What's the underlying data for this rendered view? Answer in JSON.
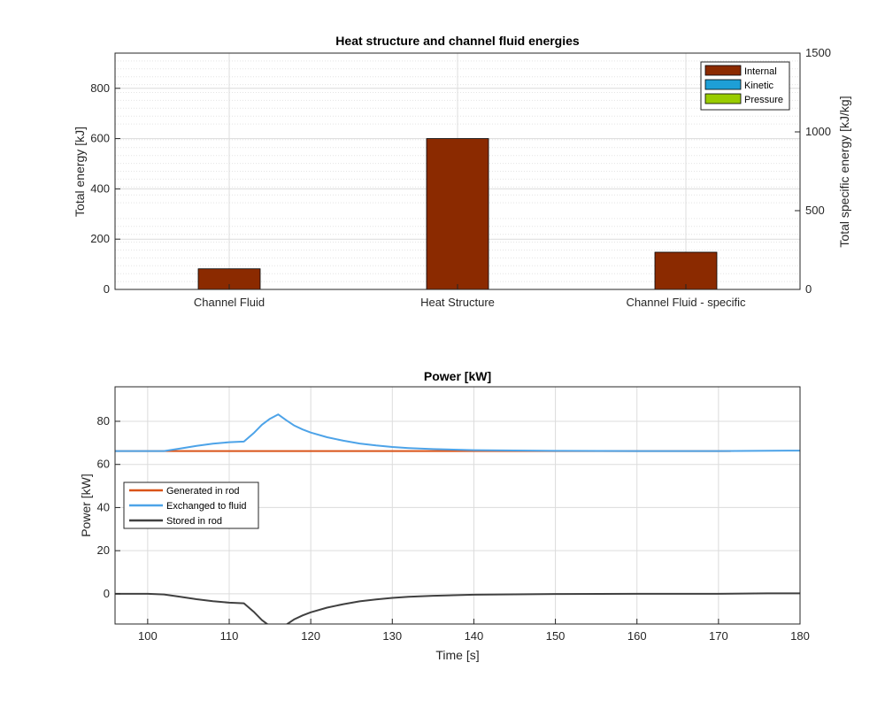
{
  "chart_data": [
    {
      "type": "bar",
      "title": "Heat structure and channel fluid energies",
      "ylabel": "Total energy [kJ]",
      "ylabel_right": "Total specific energy [kJ/kg]",
      "ylim": [
        0,
        940
      ],
      "ylim_right": [
        0,
        1500
      ],
      "yticks": [
        0,
        200,
        400,
        600,
        800
      ],
      "yticks_right": [
        0,
        500,
        1000,
        1500
      ],
      "categories": [
        "Channel Fluid",
        "Heat Structure",
        "Channel Fluid - specific"
      ],
      "series": [
        {
          "name": "Internal",
          "values": [
            82,
            600,
            148
          ],
          "color": "#8b2a00"
        },
        {
          "name": "Kinetic",
          "values": [
            0,
            0,
            0
          ],
          "color": "#1e9fd6"
        },
        {
          "name": "Pressure",
          "values": [
            0,
            0,
            0
          ],
          "color": "#99cc00"
        }
      ],
      "grid": true,
      "legend": "top-right"
    },
    {
      "type": "line",
      "title": "Power [kW]",
      "xlabel": "Time [s]",
      "ylabel": "Power [kW]",
      "xlim": [
        96,
        180
      ],
      "ylim": [
        -14,
        96
      ],
      "xticks": [
        100,
        110,
        120,
        130,
        140,
        150,
        160,
        170,
        180
      ],
      "yticks": [
        0,
        20,
        40,
        60,
        80
      ],
      "grid": true,
      "legend": "middle-left",
      "series": [
        {
          "name": "Generated in rod",
          "color": "#d95319",
          "x": [
            96,
            110,
            120,
            130,
            140,
            150,
            160,
            171.5
          ],
          "y": [
            66.2,
            66.2,
            66.2,
            66.2,
            66.2,
            66.2,
            66.2,
            66.2
          ]
        },
        {
          "name": "Exchanged to fluid",
          "color": "#4da3e8",
          "x": [
            96,
            102,
            104,
            106,
            108,
            110,
            111.8,
            113,
            114,
            115,
            116,
            117,
            118,
            119,
            120,
            122,
            124,
            126,
            128,
            130,
            132,
            135,
            140,
            150,
            160,
            170,
            180
          ],
          "y": [
            66.2,
            66.2,
            67.4,
            68.6,
            69.6,
            70.3,
            70.6,
            74.5,
            78.4,
            81.2,
            83.2,
            80.5,
            78,
            76.2,
            74.8,
            72.6,
            71,
            69.7,
            68.8,
            68.1,
            67.6,
            67.1,
            66.6,
            66.3,
            66.2,
            66.2,
            66.4
          ]
        },
        {
          "name": "Stored in rod",
          "color": "#404040",
          "x": [
            96,
            100,
            102,
            104,
            106,
            108,
            110,
            111.8,
            113,
            114,
            115,
            116,
            117,
            118,
            119,
            120,
            122,
            124,
            126,
            128,
            130,
            132,
            135,
            140,
            150,
            160,
            170,
            176,
            180
          ],
          "y": [
            0,
            0,
            -0.3,
            -1.4,
            -2.5,
            -3.4,
            -4.1,
            -4.4,
            -8.3,
            -12.2,
            -15,
            -17,
            -14.3,
            -11.8,
            -10,
            -8.6,
            -6.4,
            -4.8,
            -3.5,
            -2.6,
            -1.9,
            -1.4,
            -0.9,
            -0.4,
            -0.1,
            0,
            0,
            0.2,
            0.2
          ]
        }
      ]
    }
  ]
}
